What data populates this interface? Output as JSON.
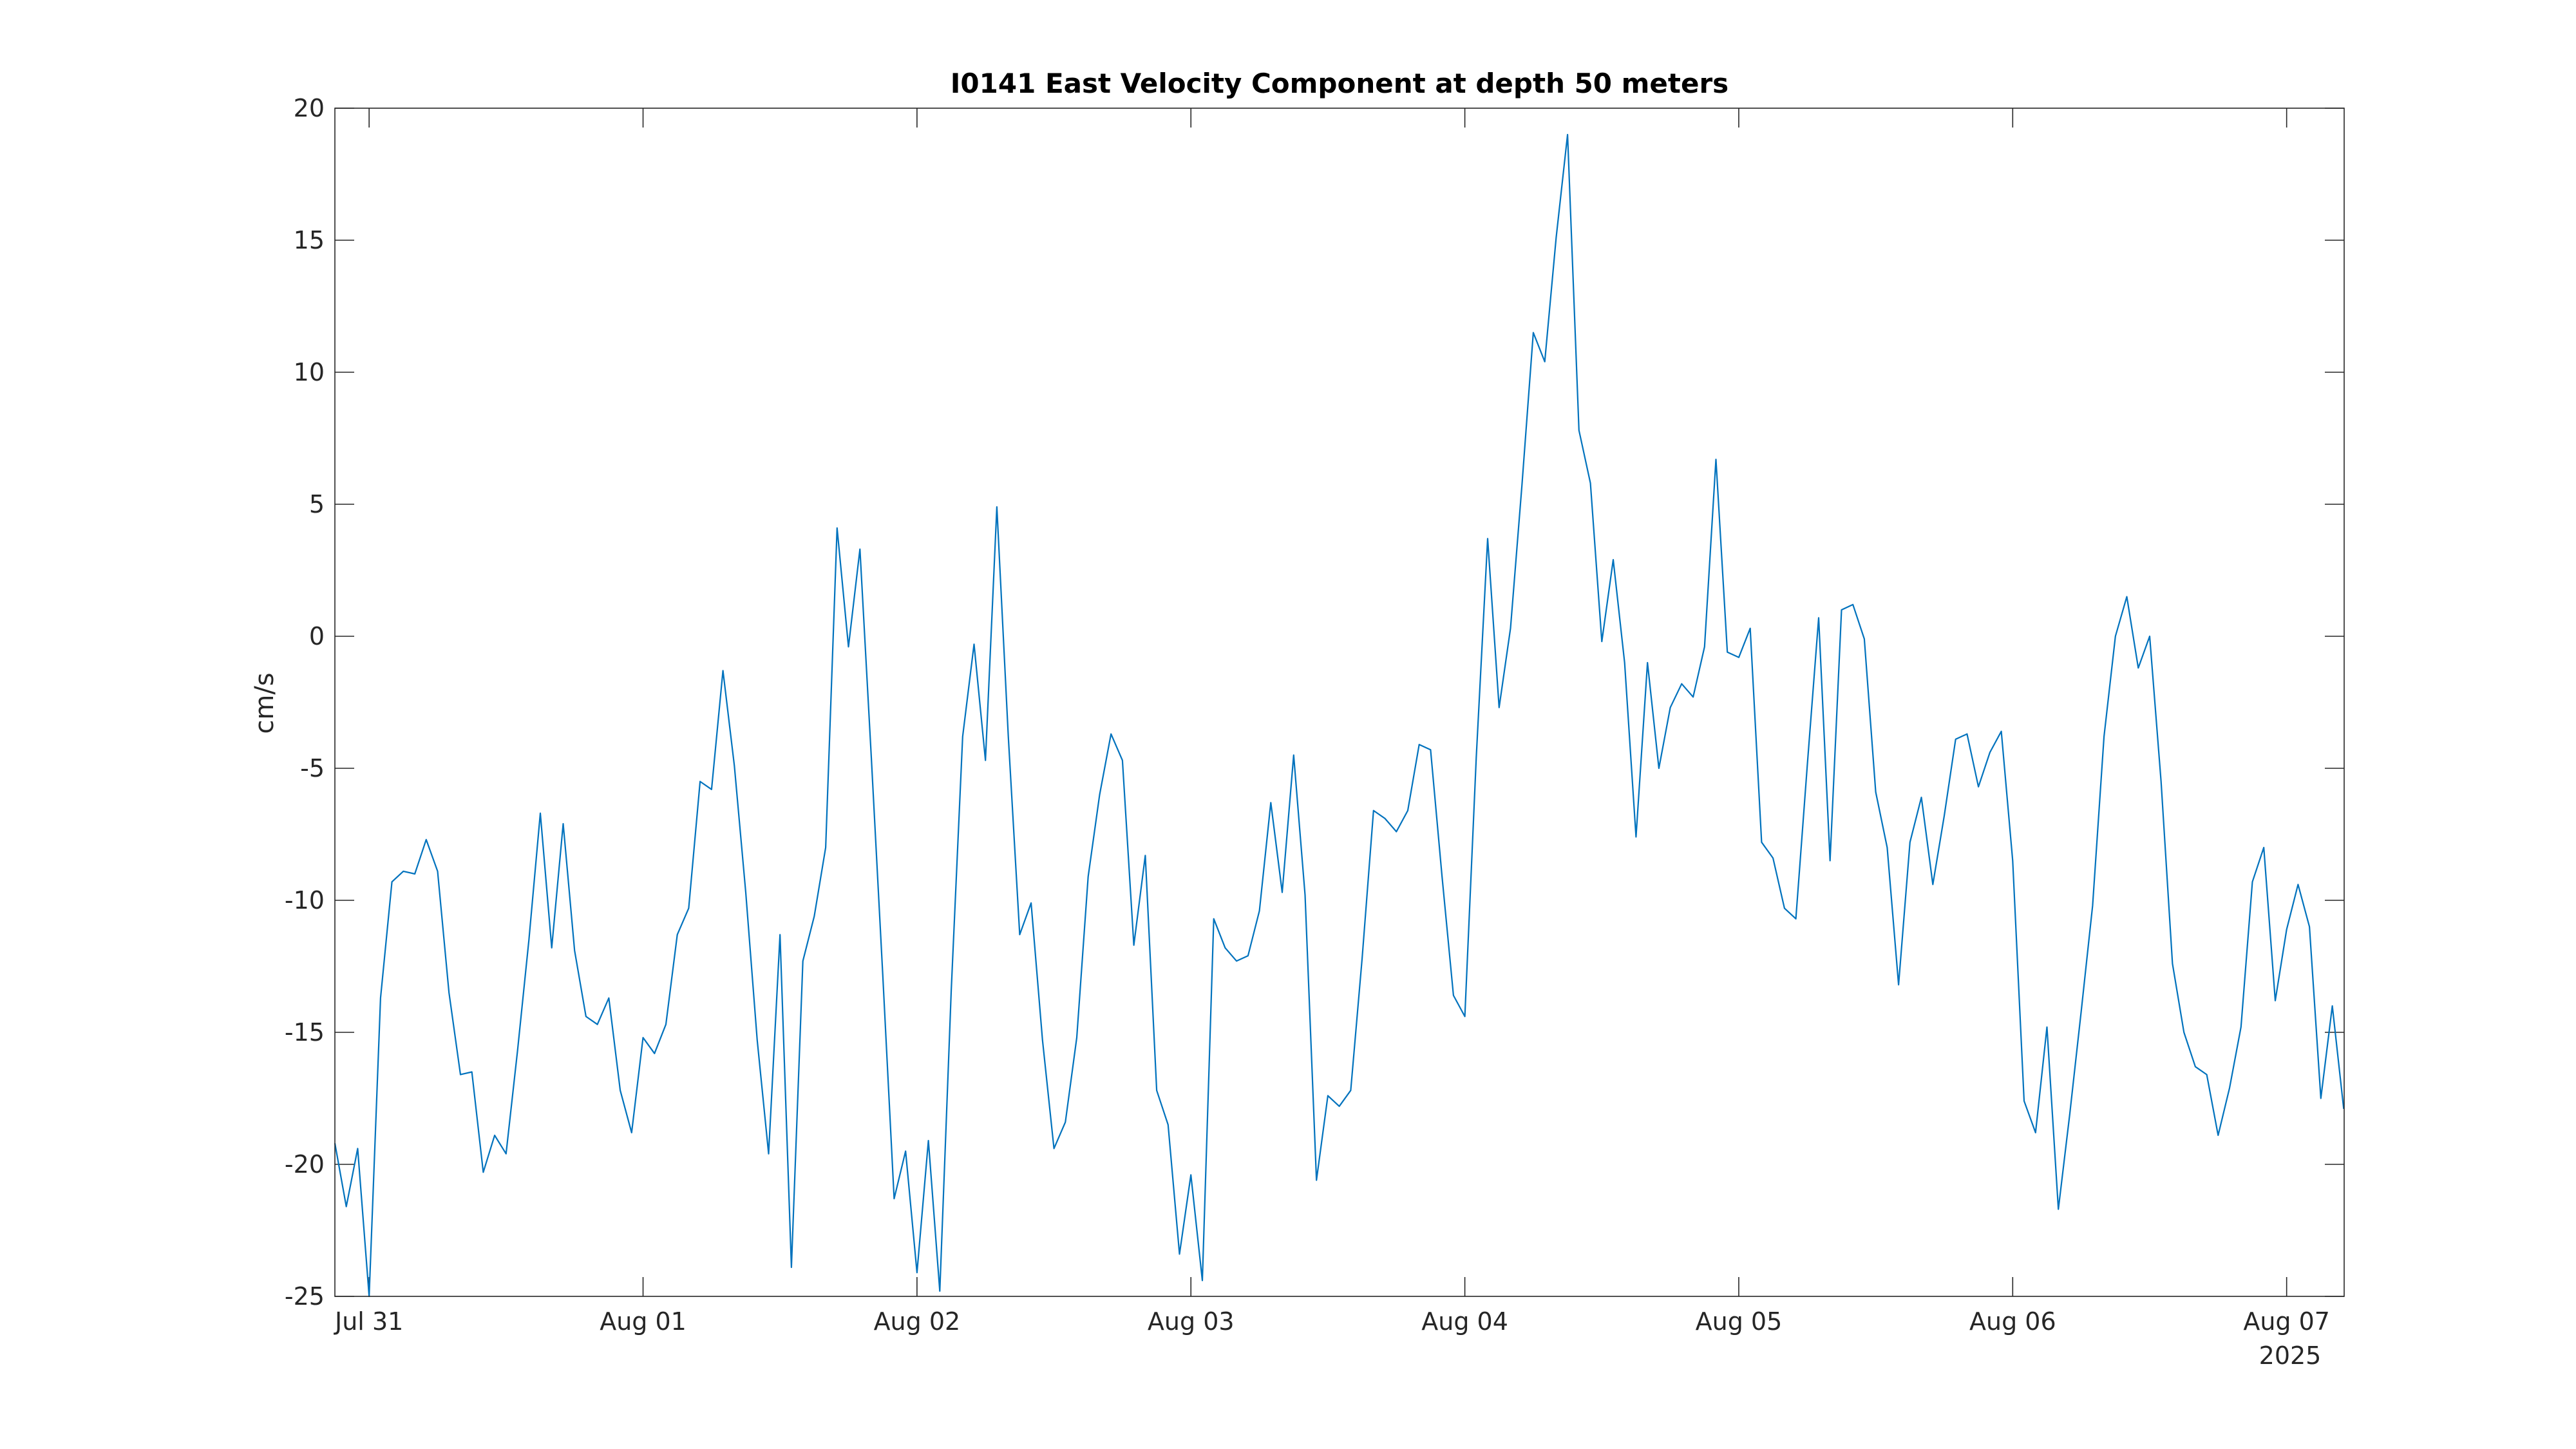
{
  "chart_data": {
    "type": "line",
    "title": "I0141 East Velocity Component at depth 50 meters",
    "xlabel": "",
    "ylabel": "cm/s",
    "ylim": [
      -25,
      20
    ],
    "yticks": [
      "20",
      "15",
      "10",
      "5",
      "0",
      "-5",
      "-10",
      "-15",
      "-20",
      "-25"
    ],
    "xlim_days": [
      -0.125,
      7.21
    ],
    "xticks": [
      {
        "label": "Jul 31",
        "day": 0
      },
      {
        "label": "Aug 01",
        "day": 1
      },
      {
        "label": "Aug 02",
        "day": 2
      },
      {
        "label": "Aug 03",
        "day": 3
      },
      {
        "label": "Aug 04",
        "day": 4
      },
      {
        "label": "Aug 05",
        "day": 5
      },
      {
        "label": "Aug 06",
        "day": 6
      },
      {
        "label": "Aug 07",
        "day": 7
      }
    ],
    "x_year_label": "2025",
    "grid": false,
    "series": [
      {
        "color": "#0072BD",
        "sample_interval_hours": 1,
        "start_day": -0.125,
        "values": [
          -19.2,
          -21.6,
          -19.4,
          -25.0,
          -13.7,
          -9.3,
          -8.9,
          -9.0,
          -7.7,
          -8.9,
          -13.5,
          -16.6,
          -16.5,
          -20.3,
          -18.9,
          -19.6,
          -15.7,
          -11.5,
          -6.7,
          -11.8,
          -7.1,
          -11.9,
          -14.4,
          -14.7,
          -13.7,
          -17.2,
          -18.8,
          -15.2,
          -15.8,
          -14.7,
          -11.3,
          -10.3,
          -5.5,
          -5.8,
          -1.3,
          -4.9,
          -9.7,
          -15.3,
          -19.6,
          -11.3,
          -23.9,
          -12.3,
          -10.6,
          -8.0,
          4.1,
          -0.4,
          3.3,
          -4.6,
          -12.8,
          -21.3,
          -19.5,
          -24.1,
          -19.1,
          -24.8,
          -13.4,
          -3.8,
          -0.3,
          -4.7,
          4.9,
          -3.8,
          -11.3,
          -10.1,
          -15.3,
          -19.4,
          -18.4,
          -15.2,
          -9.1,
          -6.0,
          -3.7,
          -4.7,
          -11.7,
          -8.3,
          -17.2,
          -18.5,
          -23.4,
          -20.4,
          -24.4,
          -10.7,
          -11.8,
          -12.3,
          -12.1,
          -10.4,
          -6.3,
          -9.7,
          -4.5,
          -9.8,
          -20.6,
          -17.4,
          -17.8,
          -17.2,
          -12.2,
          -6.6,
          -6.9,
          -7.4,
          -6.6,
          -4.1,
          -4.3,
          -9.1,
          -13.6,
          -14.4,
          -4.6,
          3.7,
          -2.7,
          0.3,
          5.7,
          11.5,
          10.4,
          15.1,
          19.0,
          7.8,
          5.8,
          -0.2,
          2.9,
          -1.0,
          -7.6,
          -1.0,
          -5.0,
          -2.7,
          -1.8,
          -2.3,
          -0.4,
          6.7,
          -0.6,
          -0.8,
          0.3,
          -7.8,
          -8.4,
          -10.3,
          -10.7,
          -4.9,
          0.7,
          -8.5,
          1.0,
          1.2,
          -0.1,
          -5.9,
          -8.0,
          -13.2,
          -7.8,
          -6.1,
          -9.4,
          -6.8,
          -3.9,
          -3.7,
          -5.7,
          -4.4,
          -3.6,
          -8.5,
          -17.6,
          -18.8,
          -14.8,
          -21.7,
          -18.1,
          -14.2,
          -10.2,
          -3.8,
          0.0,
          1.5,
          -1.2,
          0.0,
          -5.5,
          -12.4,
          -15.0,
          -16.3,
          -16.6,
          -18.9,
          -17.1,
          -14.8,
          -9.3,
          -8.0,
          -13.8,
          -11.1,
          -9.4,
          -11.0,
          -17.5,
          -14.0,
          -17.9
        ]
      }
    ]
  }
}
